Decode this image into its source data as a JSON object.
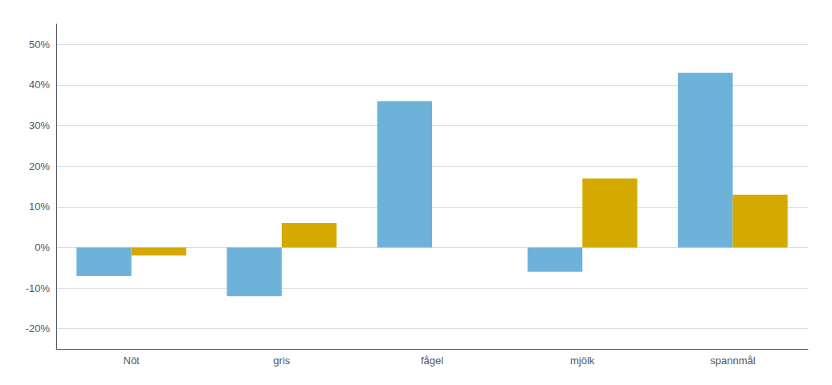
{
  "chart_data": {
    "type": "bar",
    "categories": [
      "Nöt",
      "gris",
      "fågel",
      "mjölk",
      "spannmål"
    ],
    "series": [
      {
        "color": "#6db3d9",
        "values": [
          -7.0,
          -12.0,
          36.0,
          -6.0,
          43.0
        ]
      },
      {
        "color": "#d4aa00",
        "values": [
          -2.0,
          6.0,
          0.0,
          17.0,
          13.0
        ]
      }
    ],
    "ylim": [
      -25,
      55
    ],
    "yticks": [
      {
        "value": -20,
        "label": "-20%"
      },
      {
        "value": -10,
        "label": "-10%"
      },
      {
        "value": 0,
        "label": "0%"
      },
      {
        "value": 10,
        "label": "10%"
      },
      {
        "value": 20,
        "label": "20%"
      },
      {
        "value": 30,
        "label": "30%"
      },
      {
        "value": 40,
        "label": "40%"
      },
      {
        "value": 50,
        "label": "50%"
      }
    ],
    "grid": true
  }
}
